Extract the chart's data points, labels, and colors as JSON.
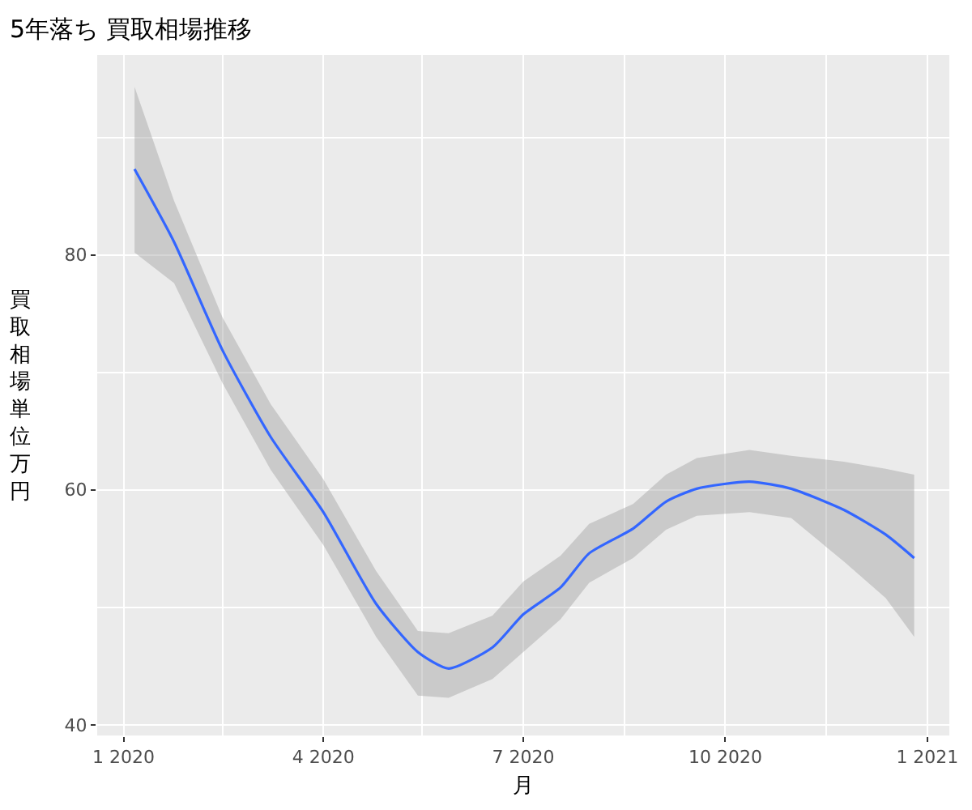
{
  "chart_data": {
    "type": "line",
    "title": "5年落ち 買取相場推移",
    "xlabel": "月",
    "ylabel": "買取相場単位万円",
    "x": [
      "2020-01-06",
      "2020-01-24",
      "2020-02-15",
      "2020-03-08",
      "2020-04-01",
      "2020-04-25",
      "2020-05-14",
      "2020-05-28",
      "2020-06-17",
      "2020-07-01",
      "2020-07-18",
      "2020-07-31",
      "2020-08-20",
      "2020-09-04",
      "2020-09-18",
      "2020-10-12",
      "2020-10-31",
      "2020-11-24",
      "2020-12-13",
      "2020-12-26"
    ],
    "series": [
      {
        "color": "#3366ff",
        "values": [
          87.3,
          81.1,
          71.9,
          64.5,
          58.1,
          50.3,
          46.2,
          44.8,
          46.6,
          49.4,
          51.7,
          54.6,
          56.7,
          59.0,
          60.1,
          60.7,
          60.1,
          58.3,
          56.2,
          54.2
        ],
        "lower": [
          80.2,
          77.6,
          69.1,
          61.7,
          55.3,
          47.5,
          42.5,
          42.3,
          43.9,
          46.2,
          49.0,
          52.1,
          54.2,
          56.6,
          57.8,
          58.1,
          57.6,
          53.9,
          50.8,
          47.5
        ],
        "upper": [
          94.3,
          84.6,
          74.7,
          67.3,
          60.9,
          53.1,
          48.0,
          47.8,
          49.3,
          52.2,
          54.4,
          57.1,
          58.8,
          61.3,
          62.7,
          63.4,
          62.9,
          62.4,
          61.8,
          61.3
        ]
      }
    ],
    "xlim": [
      "2019-12-20",
      "2021-01-11"
    ],
    "xticks": [
      {
        "value": "2020-01-01",
        "label": "1 2020"
      },
      {
        "value": "2020-02-15",
        "label": null
      },
      {
        "value": "2020-04-01",
        "label": "4 2020"
      },
      {
        "value": "2020-05-16",
        "label": null
      },
      {
        "value": "2020-07-01",
        "label": "7 2020"
      },
      {
        "value": "2020-08-16",
        "label": null
      },
      {
        "value": "2020-10-01",
        "label": "10 2020"
      },
      {
        "value": "2020-11-16",
        "label": null
      },
      {
        "value": "2021-01-01",
        "label": "1 2021"
      }
    ],
    "ylim": [
      39.1,
      97.0
    ],
    "yticks": [
      40,
      {
        "value": 50,
        "label": null
      },
      60,
      {
        "value": 70,
        "label": null
      },
      80,
      {
        "value": 90,
        "label": null
      }
    ],
    "grid": true,
    "line_style": "solid",
    "marker": "none"
  }
}
